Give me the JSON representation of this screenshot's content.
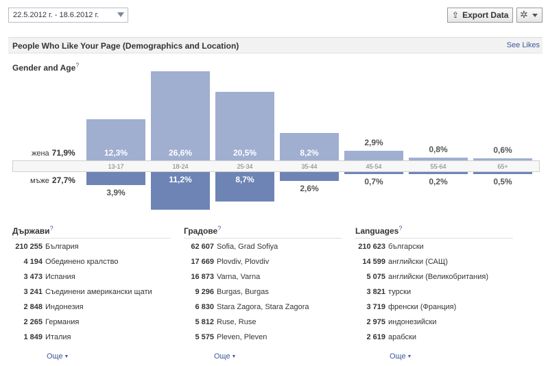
{
  "toolbar": {
    "date_range": "22.5.2012 г. - 18.6.2012 г.",
    "export_label": "Export Data"
  },
  "section": {
    "title": "People Who Like Your Page (Demographics and Location)",
    "see_likes": "See Likes"
  },
  "chart_title": "Gender and Age",
  "help_mark": "?",
  "chart_data": {
    "type": "bar",
    "categories": [
      "13-17",
      "18-24",
      "25-34",
      "35-44",
      "45-54",
      "55-64",
      "65+"
    ],
    "series": [
      {
        "name": "жена",
        "total": "71,9%",
        "values": [
          12.3,
          26.6,
          20.5,
          8.2,
          2.9,
          0.8,
          0.6
        ],
        "labels": [
          "12,3%",
          "26,6%",
          "20,5%",
          "8,2%",
          "2,9%",
          "0,8%",
          "0,6%"
        ]
      },
      {
        "name": "мъже",
        "total": "27,7%",
        "values": [
          3.9,
          11.2,
          8.7,
          2.6,
          0.7,
          0.2,
          0.5
        ],
        "labels": [
          "3,9%",
          "11,2%",
          "8,7%",
          "2,6%",
          "0,7%",
          "0,2%",
          "0,5%"
        ]
      }
    ],
    "colors": {
      "female": "#a0aed0",
      "male": "#6d84b4"
    }
  },
  "lists": [
    {
      "title": "Държави",
      "rows": [
        {
          "count": "210 255",
          "name": "България"
        },
        {
          "count": "4 194",
          "name": "Обединено кралство"
        },
        {
          "count": "3 473",
          "name": "Испания"
        },
        {
          "count": "3 241",
          "name": "Съединени американски щати"
        },
        {
          "count": "2 848",
          "name": "Индонезия"
        },
        {
          "count": "2 265",
          "name": "Германия"
        },
        {
          "count": "1 849",
          "name": "Италия"
        }
      ],
      "more": "Още"
    },
    {
      "title": "Градове",
      "rows": [
        {
          "count": "62 607",
          "name": "Sofia, Grad Sofiya"
        },
        {
          "count": "17 669",
          "name": "Plovdiv, Plovdiv"
        },
        {
          "count": "16 873",
          "name": "Varna, Varna"
        },
        {
          "count": "9 296",
          "name": "Burgas, Burgas"
        },
        {
          "count": "6 830",
          "name": "Stara Zagora, Stara Zagora"
        },
        {
          "count": "5 812",
          "name": "Ruse, Ruse"
        },
        {
          "count": "5 575",
          "name": "Pleven, Pleven"
        }
      ],
      "more": "Още"
    },
    {
      "title": "Languages",
      "rows": [
        {
          "count": "210 623",
          "name": "български"
        },
        {
          "count": "14 599",
          "name": "английски (САЩ)"
        },
        {
          "count": "5 075",
          "name": "английски (Великобритания)"
        },
        {
          "count": "3 821",
          "name": "турски"
        },
        {
          "count": "3 719",
          "name": "френски (Франция)"
        },
        {
          "count": "2 975",
          "name": "индонезийски"
        },
        {
          "count": "2 619",
          "name": "арабски"
        }
      ],
      "more": "Още"
    }
  ]
}
